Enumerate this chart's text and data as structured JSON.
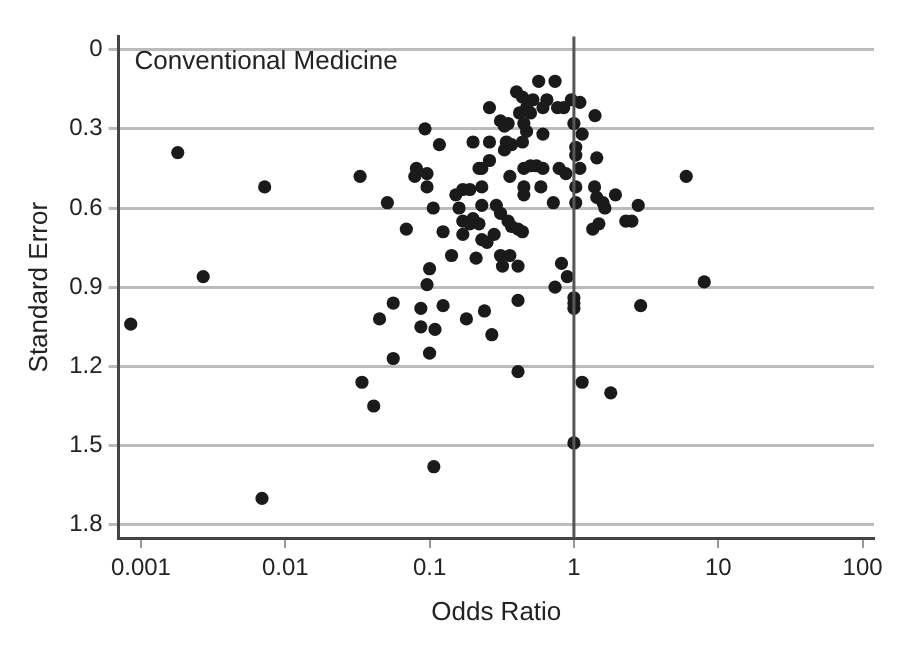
{
  "chart_data": {
    "type": "scatter",
    "annotations": [
      "Conventional Medicine"
    ],
    "xlabel": "Odds Ratio",
    "ylabel": "Standard Error",
    "log": "x",
    "grid": "y",
    "marker": "circle",
    "color": "#1a1a1a",
    "xlim": [
      0.0007,
      120
    ],
    "xticks": [
      0.001,
      0.01,
      0.1,
      1,
      10,
      100
    ],
    "ylim": [
      1.85,
      -0.05
    ],
    "yticks": [
      0,
      0.3,
      0.6,
      0.9,
      1.2,
      1.5,
      1.8
    ],
    "ref_lines": [
      {
        "axis": "x",
        "value": 1,
        "color": "#555555"
      }
    ],
    "x": [
      0.0018,
      0.0072,
      0.0027,
      0.00085,
      0.0069,
      0.033,
      0.051,
      0.069,
      0.056,
      0.045,
      0.056,
      0.034,
      0.041,
      0.107,
      0.093,
      0.117,
      0.081,
      0.079,
      0.096,
      0.096,
      0.106,
      0.124,
      0.142,
      0.1,
      0.096,
      0.124,
      0.087,
      0.087,
      0.109,
      0.1,
      0.152,
      6.0,
      8.0,
      2.9,
      1.8,
      1.14,
      1.0,
      0.41,
      0.27,
      0.24,
      0.18,
      0.41,
      0.9,
      0.82,
      0.74,
      1.0,
      1.0,
      1.0,
      0.31,
      0.36,
      0.32,
      0.41,
      0.21,
      0.17,
      0.19,
      0.2,
      0.17,
      0.22,
      0.23,
      0.25,
      0.23,
      0.29,
      0.31,
      0.35,
      0.37,
      0.41,
      0.44,
      0.28,
      0.16,
      0.17,
      0.23,
      0.19,
      0.2,
      0.26,
      0.34,
      0.37,
      0.44,
      0.33,
      0.23,
      0.22,
      0.26,
      0.36,
      0.45,
      0.5,
      0.55,
      0.61,
      0.45,
      0.45,
      0.59,
      0.72,
      0.79,
      0.88,
      0.26,
      0.31,
      0.33,
      0.35,
      0.4,
      0.44,
      0.42,
      0.47,
      0.5,
      0.45,
      0.52,
      0.57,
      0.61,
      0.65,
      0.74,
      0.77,
      0.85,
      0.96,
      1.1,
      1.0,
      1.14,
      1.4,
      0.61,
      0.47,
      1.03,
      1.03,
      1.44,
      1.03,
      1.03,
      1.39,
      1.44,
      1.59,
      1.94,
      1.64,
      2.29,
      2.52,
      2.79,
      1.49,
      1.35,
      1.1
    ],
    "values": [
      0.39,
      0.52,
      0.86,
      1.04,
      1.7,
      0.48,
      0.58,
      0.68,
      0.96,
      1.02,
      1.17,
      1.26,
      1.35,
      1.58,
      0.3,
      0.36,
      0.45,
      0.48,
      0.47,
      0.52,
      0.6,
      0.69,
      0.78,
      0.83,
      0.89,
      0.97,
      0.98,
      1.05,
      1.06,
      1.15,
      0.55,
      0.48,
      0.88,
      0.97,
      1.3,
      1.26,
      1.49,
      1.22,
      1.08,
      0.99,
      1.02,
      0.95,
      0.86,
      0.81,
      0.9,
      0.94,
      0.96,
      0.98,
      0.78,
      0.78,
      0.82,
      0.82,
      0.79,
      0.65,
      0.66,
      0.64,
      0.7,
      0.66,
      0.72,
      0.73,
      0.59,
      0.59,
      0.62,
      0.65,
      0.67,
      0.68,
      0.69,
      0.7,
      0.6,
      0.53,
      0.52,
      0.53,
      0.35,
      0.35,
      0.35,
      0.36,
      0.35,
      0.38,
      0.45,
      0.45,
      0.42,
      0.48,
      0.45,
      0.44,
      0.44,
      0.45,
      0.52,
      0.55,
      0.52,
      0.58,
      0.45,
      0.47,
      0.22,
      0.27,
      0.29,
      0.28,
      0.16,
      0.18,
      0.24,
      0.22,
      0.24,
      0.28,
      0.19,
      0.12,
      0.22,
      0.19,
      0.12,
      0.22,
      0.22,
      0.19,
      0.2,
      0.28,
      0.32,
      0.25,
      0.32,
      0.31,
      0.37,
      0.4,
      0.41,
      0.52,
      0.58,
      0.52,
      0.56,
      0.58,
      0.55,
      0.6,
      0.65,
      0.65,
      0.59,
      0.66,
      0.68,
      0.45
    ]
  }
}
